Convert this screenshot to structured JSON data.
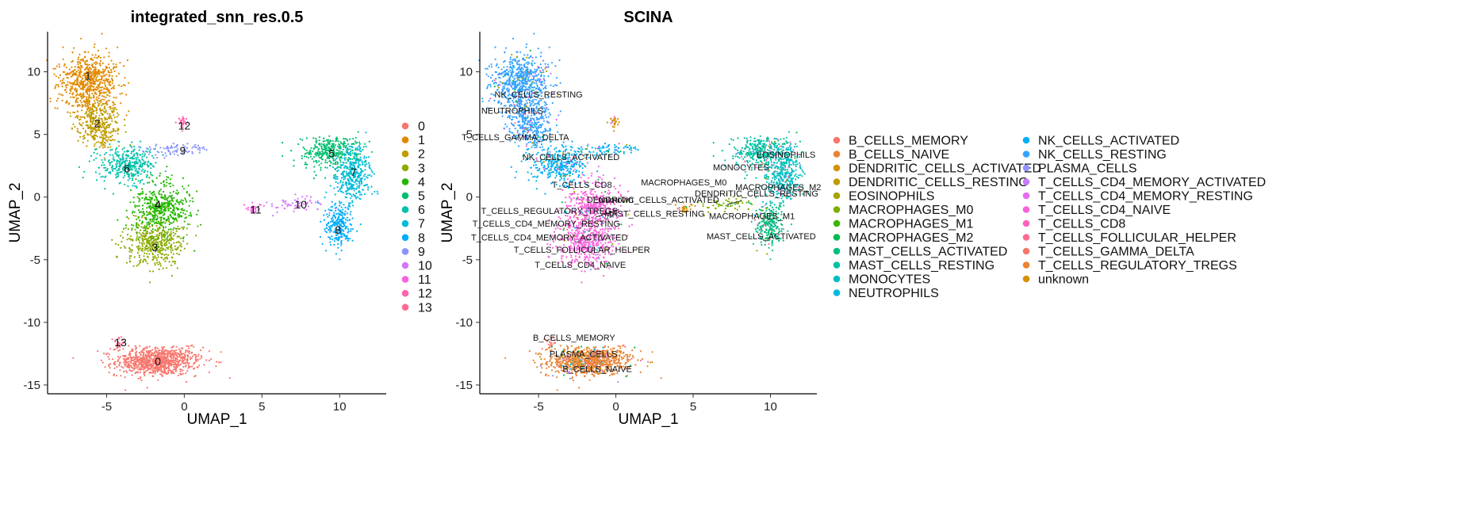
{
  "chart_data": [
    {
      "type": "scatter",
      "title": "integrated_snn_res.0.5",
      "xlabel": "UMAP_1",
      "ylabel": "UMAP_2",
      "xlim": [
        -8.8,
        13.0
      ],
      "ylim": [
        -15.7,
        13.2
      ],
      "xticks": [
        -5,
        0,
        5,
        10
      ],
      "yticks": [
        10,
        5,
        0,
        -5,
        -10,
        -15
      ],
      "legend_position": "right",
      "legend": [
        "0",
        "1",
        "2",
        "3",
        "4",
        "5",
        "6",
        "7",
        "8",
        "9",
        "10",
        "11",
        "12",
        "13"
      ],
      "clusters": [
        {
          "name": "0",
          "color": "#F8766D",
          "label_x": -1.7,
          "label_y": -13.1
        },
        {
          "name": "1",
          "color": "#E18A00",
          "label_x": -6.2,
          "label_y": 9.7
        },
        {
          "name": "2",
          "color": "#BE9C00",
          "label_x": -5.6,
          "label_y": 5.9
        },
        {
          "name": "3",
          "color": "#8CAB00",
          "label_x": -1.9,
          "label_y": -4.0
        },
        {
          "name": "4",
          "color": "#24B700",
          "label_x": -1.7,
          "label_y": -0.6
        },
        {
          "name": "5",
          "color": "#00BE70",
          "label_x": 9.5,
          "label_y": 3.5
        },
        {
          "name": "6",
          "color": "#00C1AB",
          "label_x": -3.7,
          "label_y": 2.3
        },
        {
          "name": "7",
          "color": "#00BBDA",
          "label_x": 10.9,
          "label_y": 2.0
        },
        {
          "name": "8",
          "color": "#00ACFC",
          "label_x": 9.9,
          "label_y": -2.6
        },
        {
          "name": "9",
          "color": "#8B93FF",
          "label_x": -0.1,
          "label_y": 3.7
        },
        {
          "name": "10",
          "color": "#D575FE",
          "label_x": 7.5,
          "label_y": -0.6
        },
        {
          "name": "11",
          "color": "#F962DD",
          "label_x": 4.6,
          "label_y": -1.0
        },
        {
          "name": "12",
          "color": "#FF65AC",
          "label_x": 0.0,
          "label_y": 5.7
        },
        {
          "name": "13",
          "color": "#FF6C91",
          "label_x": -4.1,
          "label_y": -11.6
        }
      ]
    },
    {
      "type": "scatter",
      "title": "SCINA",
      "xlabel": "UMAP_1",
      "ylabel": "UMAP_2",
      "xlim": [
        -8.8,
        13.0
      ],
      "ylim": [
        -15.7,
        13.2
      ],
      "xticks": [
        -5,
        0,
        5,
        10
      ],
      "yticks": [
        10,
        5,
        0,
        -5,
        -10,
        -15
      ],
      "legend_position": "right",
      "legend": [
        "B_CELLS_MEMORY",
        "B_CELLS_NAIVE",
        "DENDRITIC_CELLS_ACTIVATED",
        "DENDRITIC_CELLS_RESTING",
        "EOSINOPHILS",
        "MACROPHAGES_M0",
        "MACROPHAGES_M1",
        "MACROPHAGES_M2",
        "MAST_CELLS_ACTIVATED",
        "MAST_CELLS_RESTING",
        "MONOCYTES",
        "NEUTROPHILS",
        "NK_CELLS_ACTIVATED",
        "NK_CELLS_RESTING",
        "PLASMA_CELLS",
        "T_CELLS_CD4_MEMORY_ACTIVATED",
        "T_CELLS_CD4_MEMORY_RESTING",
        "T_CELLS_CD4_NAIVE",
        "T_CELLS_CD8",
        "T_CELLS_FOLLICULAR_HELPER",
        "T_CELLS_GAMMA_DELTA",
        "T_CELLS_REGULATORY_TREGS",
        "unknown"
      ],
      "legend_colors": [
        "#F8766D",
        "#EA8331",
        "#D89000",
        "#C09B00",
        "#A3A500",
        "#7CAE00",
        "#39B600",
        "#00BB4E",
        "#00BF7D",
        "#00C1A3",
        "#00BFC4",
        "#00BAE0",
        "#00B0F6",
        "#35A2FF",
        "#9590FF",
        "#C77CFF",
        "#E76BF3",
        "#FA62DB",
        "#FF62BC",
        "#FF6C90",
        "#F8766D",
        "#EA8331",
        "#D89000"
      ],
      "annotations": [
        {
          "text": "NK_CELLS_RESTING",
          "x": -5.0,
          "y": 8.2
        },
        {
          "text": "NEUTROPHILS",
          "x": -6.7,
          "y": 6.9
        },
        {
          "text": "T_CELLS_GAMMA_DELTA",
          "x": -6.5,
          "y": 4.8
        },
        {
          "text": "NK_CELLS_ACTIVATED",
          "x": -2.9,
          "y": 3.2
        },
        {
          "text": "T_CELLS_CD8",
          "x": -2.2,
          "y": 1.0
        },
        {
          "text": "unknown",
          "x": 0.0,
          "y": -0.2
        },
        {
          "text": "DENDRITIC_CELLS_ACTIVATED",
          "x": 2.4,
          "y": -0.2
        },
        {
          "text": "T_CELLS_REGULATORY_TREGS",
          "x": -4.3,
          "y": -1.1
        },
        {
          "text": "MAST_CELLS_RESTING",
          "x": 2.5,
          "y": -1.3
        },
        {
          "text": "T_CELLS_CD4_MEMORY_RESTING",
          "x": -4.5,
          "y": -2.1
        },
        {
          "text": "T_CELLS_CD4_MEMORY_ACTIVATED",
          "x": -4.3,
          "y": -3.2
        },
        {
          "text": "T_CELLS_FOLLICULAR_HELPER",
          "x": -2.2,
          "y": -4.2
        },
        {
          "text": "T_CELLS_CD4_NAIVE",
          "x": -2.3,
          "y": -5.4
        },
        {
          "text": "MACROPHAGES_M0",
          "x": 4.4,
          "y": 1.2
        },
        {
          "text": "MONOCYTES",
          "x": 8.1,
          "y": 2.4
        },
        {
          "text": "EOSINOPHILS",
          "x": 11.0,
          "y": 3.4
        },
        {
          "text": "MACROPHAGES_M2",
          "x": 10.5,
          "y": 0.8
        },
        {
          "text": "DENDRITIC_CELLS_RESTING",
          "x": 9.1,
          "y": 0.3
        },
        {
          "text": "MACROPHAGES_M1",
          "x": 8.8,
          "y": -1.5
        },
        {
          "text": "MAST_CELLS_ACTIVATED",
          "x": 9.4,
          "y": -3.1
        },
        {
          "text": "B_CELLS_MEMORY",
          "x": -2.7,
          "y": -11.2
        },
        {
          "text": "PLASMA_CELLS",
          "x": -2.1,
          "y": -12.5
        },
        {
          "text": "B_CELLS_NAIVE",
          "x": -1.2,
          "y": -13.7
        }
      ]
    }
  ]
}
